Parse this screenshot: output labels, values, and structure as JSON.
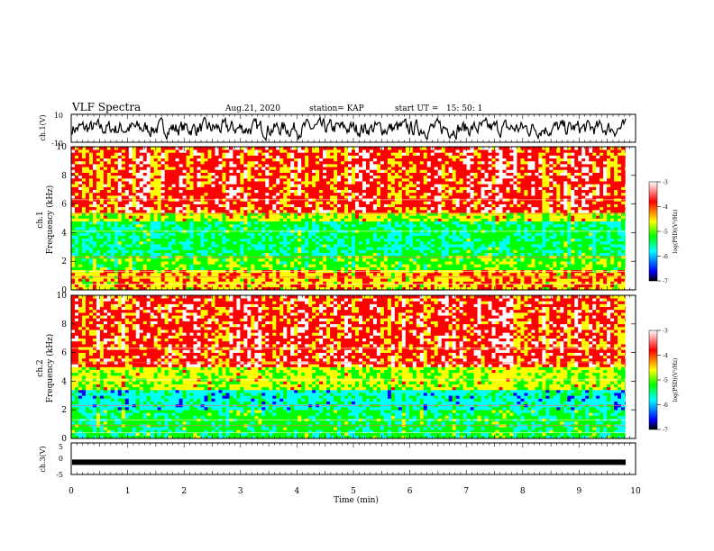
{
  "header": {
    "title": "VLF Spectra",
    "date": "Aug.21, 2020",
    "station": "station= KAP",
    "start_ut": "start UT =   15: 50: 1"
  },
  "colors": {
    "trace": "#000000",
    "background": "#ffffff",
    "colormap": [
      "#000000",
      "#0000ff",
      "#00ffff",
      "#00ff00",
      "#ffff00",
      "#ff0000",
      "#ffffff"
    ]
  },
  "chart_data": [
    {
      "type": "line",
      "ylabel": "ch.1(V)",
      "ylim": [
        -10,
        10
      ],
      "yticks": [
        "10",
        "-10"
      ],
      "xlim": [
        0,
        10
      ],
      "note": "noisy waveform trace"
    },
    {
      "type": "heatmap",
      "ylabel_top": "ch.1",
      "ylabel": "Frequency (kHz)",
      "ylim": [
        0,
        10
      ],
      "yticks": [
        "0",
        "2",
        "4",
        "6",
        "8",
        "10"
      ],
      "xlim": [
        0,
        10
      ],
      "colorbar": {
        "label": "log(PSD)(V²/Hz)",
        "range": [
          -7,
          -3
        ],
        "ticks": [
          "-3",
          "-4",
          "-5",
          "-6",
          "-7"
        ]
      },
      "bands": [
        {
          "from": 0.0,
          "to": 1.5,
          "level": -4.2
        },
        {
          "from": 1.5,
          "to": 2.5,
          "level": -4.9
        },
        {
          "from": 2.5,
          "to": 4.8,
          "level": -5.3
        },
        {
          "from": 4.8,
          "to": 5.5,
          "level": -4.6
        },
        {
          "from": 5.5,
          "to": 10.0,
          "level": -3.8
        }
      ]
    },
    {
      "type": "heatmap",
      "ylabel_top": "ch.2",
      "ylabel": "Frequency (kHz)",
      "ylim": [
        0,
        10
      ],
      "yticks": [
        "0",
        "2",
        "4",
        "6",
        "8",
        "10"
      ],
      "xlim": [
        0,
        10
      ],
      "colorbar": {
        "label": "log(PSD)(V²/Hz)",
        "range": [
          -7,
          -3
        ],
        "ticks": [
          "-3",
          "-4",
          "-5",
          "-6",
          "-7"
        ]
      },
      "bands": [
        {
          "from": 0.0,
          "to": 2.0,
          "level": -5.2
        },
        {
          "from": 2.0,
          "to": 3.5,
          "level": -5.6
        },
        {
          "from": 3.5,
          "to": 5.0,
          "level": -4.6
        },
        {
          "from": 5.0,
          "to": 10.0,
          "level": -3.8
        }
      ]
    },
    {
      "type": "line",
      "ylabel": "ch.3(V)",
      "ylim": [
        -5,
        5
      ],
      "yticks": [
        "5",
        "0",
        "-5"
      ],
      "xlim": [
        0,
        10
      ],
      "xlabel": "Time (min)",
      "xticks": [
        "0",
        "1",
        "2",
        "3",
        "4",
        "5",
        "6",
        "7",
        "8",
        "9",
        "10"
      ],
      "note": "thick flat trace near -1 V",
      "level": -1.1
    }
  ]
}
